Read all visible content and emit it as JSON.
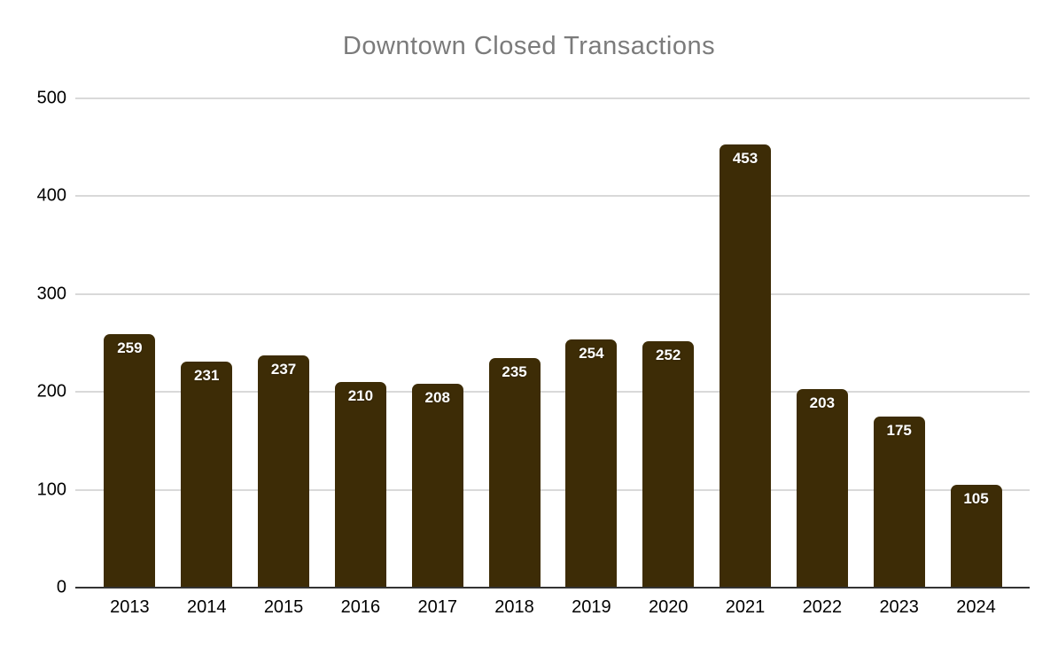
{
  "chart_data": {
    "type": "bar",
    "title": "Downtown Closed Transactions",
    "categories": [
      "2013",
      "2014",
      "2015",
      "2016",
      "2017",
      "2018",
      "2019",
      "2020",
      "2021",
      "2022",
      "2023",
      "2024"
    ],
    "values": [
      259,
      231,
      237,
      210,
      208,
      235,
      254,
      252,
      453,
      203,
      175,
      105
    ],
    "xlabel": "",
    "ylabel": "",
    "ylim": [
      0,
      500
    ],
    "yticks": [
      0,
      100,
      200,
      300,
      400,
      500
    ],
    "grid": true,
    "legend_position": "none",
    "colors": {
      "bar": "#3d2c06",
      "title": "#7b7b7b",
      "gridline": "#d9d9d9",
      "baseline": "#333333",
      "axis_text": "#000000",
      "value_label": "#ffffff",
      "background": "#ffffff"
    }
  }
}
